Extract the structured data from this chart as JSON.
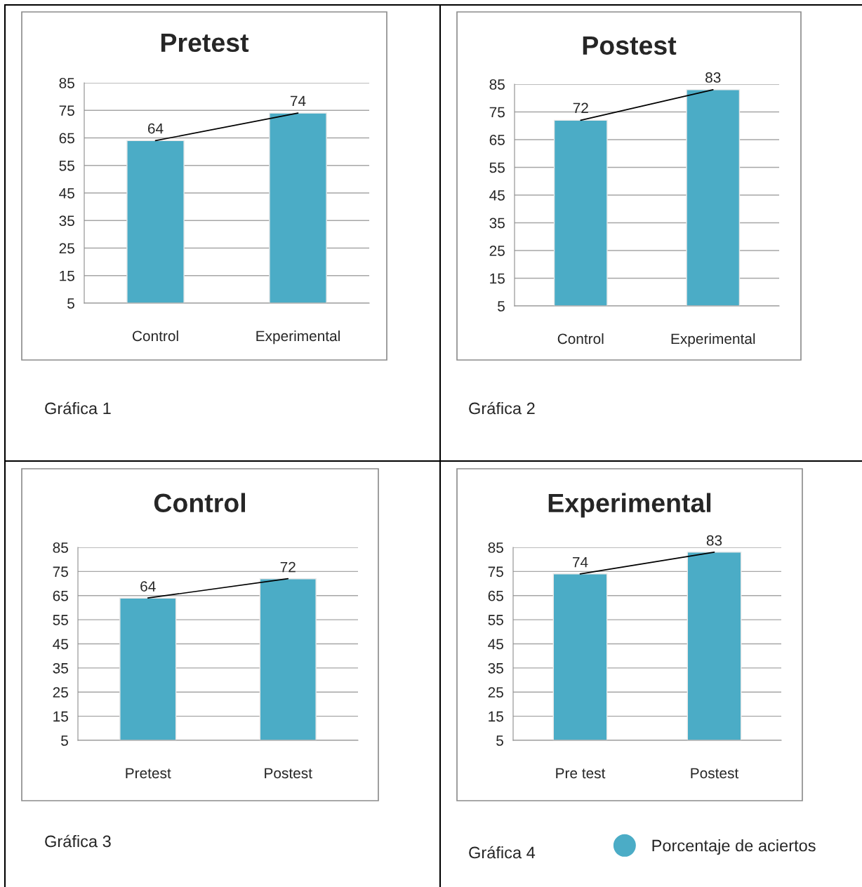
{
  "chart_data": [
    {
      "type": "bar",
      "title": "Pretest",
      "categories": [
        "Control",
        "Experimental"
      ],
      "series": [
        {
          "color": "#4bacc6",
          "values": [
            64,
            74
          ],
          "value_labels": [
            "64",
            "74"
          ]
        },
        {
          "type": "line",
          "color": "#000000",
          "values": [
            64,
            74
          ]
        }
      ],
      "ylim": [
        5,
        85
      ],
      "yticks": [
        5,
        15,
        25,
        35,
        45,
        55,
        65,
        75,
        85
      ],
      "grid": "y",
      "annotations": [
        "Gráfica 1"
      ]
    },
    {
      "type": "bar",
      "title": "Postest",
      "categories": [
        "Control",
        "Experimental"
      ],
      "series": [
        {
          "color": "#4bacc6",
          "values": [
            72,
            83
          ],
          "value_labels": [
            "72",
            "83"
          ]
        },
        {
          "type": "line",
          "color": "#000000",
          "values": [
            72,
            83
          ]
        }
      ],
      "ylim": [
        5,
        85
      ],
      "yticks": [
        5,
        15,
        25,
        35,
        45,
        55,
        65,
        75,
        85
      ],
      "grid": "y",
      "annotations": [
        "Gráfica 2"
      ]
    },
    {
      "type": "bar",
      "title": "Control",
      "categories": [
        "Pretest",
        "Postest"
      ],
      "series": [
        {
          "color": "#4bacc6",
          "values": [
            64,
            72
          ],
          "value_labels": [
            "64",
            "72"
          ]
        },
        {
          "type": "line",
          "color": "#000000",
          "values": [
            64,
            72
          ]
        }
      ],
      "ylim": [
        5,
        85
      ],
      "yticks": [
        5,
        15,
        25,
        35,
        45,
        55,
        65,
        75,
        85
      ],
      "grid": "y",
      "annotations": [
        "Gráfica 3"
      ]
    },
    {
      "type": "bar",
      "title": "Experimental",
      "categories": [
        "Pre test",
        "Postest"
      ],
      "series": [
        {
          "name": "Porcentaje de aciertos",
          "color": "#4bacc6",
          "values": [
            74,
            83
          ],
          "value_labels": [
            "74",
            "83"
          ]
        },
        {
          "type": "line",
          "color": "#000000",
          "values": [
            74,
            83
          ]
        }
      ],
      "ylim": [
        5,
        85
      ],
      "yticks": [
        5,
        15,
        25,
        35,
        45,
        55,
        65,
        75,
        85
      ],
      "grid": "y",
      "legend": "bottom right",
      "annotations": [
        "Gráfica 4"
      ]
    }
  ]
}
